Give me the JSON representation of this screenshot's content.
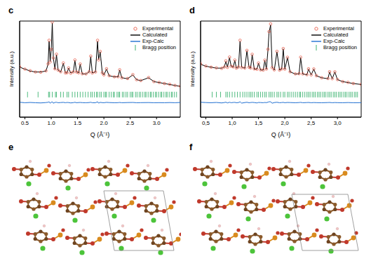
{
  "chart_data": [
    {
      "type": "line",
      "title": "c",
      "x_label": "Q (Å⁻¹)",
      "y_label": "Intensity (a.u.)",
      "xlim": [
        0.4,
        3.45
      ],
      "ylim": [
        0,
        100
      ],
      "xticks": [
        0.5,
        {
          "value": 1,
          "label": "1.0"
        },
        1.5,
        {
          "value": 2,
          "label": "2.0"
        },
        2.5,
        {
          "value": 3,
          "label": "3.0"
        }
      ],
      "tick_labels": "x",
      "legend": "upper right",
      "x": [
        0.4,
        0.5,
        0.6,
        0.7,
        0.8,
        0.9,
        0.94,
        0.96,
        0.98,
        1.0,
        1.02,
        1.04,
        1.07,
        1.1,
        1.13,
        1.18,
        1.23,
        1.27,
        1.3,
        1.33,
        1.37,
        1.42,
        1.45,
        1.48,
        1.52,
        1.55,
        1.59,
        1.66,
        1.72,
        1.75,
        1.78,
        1.84,
        1.88,
        1.9,
        1.93,
        1.97,
        2.0,
        2.05,
        2.1,
        2.2,
        2.27,
        2.3,
        2.34,
        2.45,
        2.55,
        2.62,
        2.7,
        2.85,
        2.95,
        3.05,
        3.15,
        3.25,
        3.35,
        3.45
      ],
      "series": [
        {
          "name": "Experimental",
          "type": "scatter",
          "marker": "o",
          "color": "#e8614f",
          "values": [
            52.5,
            50,
            48.3,
            47,
            46.8,
            48.2,
            55.5,
            80,
            57.5,
            70.5,
            99,
            61.5,
            50.3,
            65.5,
            49,
            47.2,
            56.4,
            46,
            46.3,
            51.2,
            45.8,
            47.1,
            59.5,
            47,
            46.2,
            55.3,
            45.1,
            45,
            47.2,
            63.5,
            46,
            47,
            80,
            59.6,
            68.4,
            46.1,
            44,
            50.4,
            43.2,
            42,
            42.1,
            49.3,
            41,
            40.2,
            44.3,
            39,
            38.1,
            41.2,
            37,
            36.1,
            35,
            34.2,
            33,
            32.3
          ]
        },
        {
          "name": "Calculated",
          "type": "line",
          "line_style": "solid",
          "color": "#000000",
          "values": [
            52,
            50,
            48,
            47,
            47,
            48,
            55,
            79,
            58,
            70,
            98,
            62,
            50,
            65,
            49,
            47,
            56,
            46,
            46,
            51,
            46,
            47,
            59,
            47,
            46,
            55,
            45,
            45,
            47,
            63,
            46,
            47,
            79,
            60,
            68,
            46,
            44,
            50,
            43,
            42,
            42,
            49,
            41,
            40,
            44,
            39,
            38,
            41,
            37,
            36,
            35,
            34,
            33,
            32
          ]
        },
        {
          "name": "Exp-Calc",
          "type": "line",
          "line_style": "solid",
          "color": "#1f6fd1",
          "values": [
            15.5,
            15,
            15.3,
            15,
            14.8,
            15.2,
            15.5,
            16,
            14.5,
            15.5,
            16,
            14.5,
            15.3,
            15.5,
            15,
            15.2,
            15.4,
            15,
            15.3,
            15.2,
            14.8,
            15.1,
            15.5,
            15,
            15.2,
            15.3,
            15.1,
            15,
            15.2,
            15.5,
            15,
            15,
            16,
            14.6,
            15.4,
            15.1,
            15,
            15.4,
            15.2,
            15,
            15.1,
            15.3,
            15,
            15.2,
            15.3,
            15,
            15.1,
            15.2,
            15,
            15.1,
            15,
            15.2,
            15,
            15.3
          ]
        },
        {
          "name": "Bragg position",
          "type": "scatter",
          "marker": "|",
          "color": "#3cb371",
          "level": 23.5,
          "x": [
            0.55,
            0.75,
            0.95,
            0.97,
            1.02,
            1.08,
            1.1,
            1.18,
            1.23,
            1.3,
            1.33,
            1.4,
            1.45,
            1.5,
            1.55,
            1.6,
            1.65,
            1.7,
            1.75,
            1.78,
            1.82,
            1.86,
            1.88,
            1.92,
            1.95,
            2.0,
            2.03,
            2.05,
            2.1,
            2.14,
            2.18,
            2.2,
            2.25,
            2.28,
            2.3,
            2.35,
            2.38,
            2.42,
            2.45,
            2.5,
            2.53,
            2.55,
            2.6,
            2.63,
            2.67,
            2.7,
            2.74,
            2.78,
            2.8,
            2.84,
            2.88,
            2.9,
            2.94,
            2.98,
            3.0,
            3.04,
            3.08,
            3.1,
            3.14,
            3.18,
            3.2,
            3.24,
            3.28,
            3.3,
            3.34,
            3.38
          ]
        }
      ]
    },
    {
      "type": "line",
      "title": "d",
      "x_label": "Q (Å⁻¹)",
      "y_label": "Intensity (a.u.)",
      "xlim": [
        0.4,
        3.45
      ],
      "ylim": [
        0,
        100
      ],
      "xticks": [
        {
          "value": 0.5,
          "label": "0,5"
        },
        {
          "value": 1,
          "label": "1,0"
        },
        {
          "value": 1.5,
          "label": "1,5"
        },
        {
          "value": 2,
          "label": "2,0"
        },
        {
          "value": 2.5,
          "label": "2,5"
        },
        {
          "value": 3,
          "label": "3,0"
        }
      ],
      "tick_labels": "x",
      "legend": "upper right",
      "x": [
        0.4,
        0.5,
        0.6,
        0.7,
        0.8,
        0.85,
        0.88,
        0.91,
        0.95,
        0.98,
        1.02,
        1.05,
        1.08,
        1.12,
        1.15,
        1.18,
        1.24,
        1.28,
        1.32,
        1.35,
        1.38,
        1.42,
        1.47,
        1.5,
        1.54,
        1.59,
        1.62,
        1.65,
        1.68,
        1.7,
        1.73,
        1.76,
        1.8,
        1.85,
        1.9,
        1.94,
        1.97,
        2.0,
        2.05,
        2.1,
        2.2,
        2.27,
        2.3,
        2.34,
        2.42,
        2.45,
        2.5,
        2.55,
        2.6,
        2.7,
        2.82,
        2.85,
        2.9,
        2.95,
        3.0,
        3.1,
        3.2,
        3.3,
        3.45
      ],
      "series": [
        {
          "name": "Experimental",
          "type": "scatter",
          "marker": "o",
          "color": "#e8614f",
          "values": [
            55.5,
            53.2,
            52,
            51.3,
            50.8,
            52.2,
            58.6,
            51.8,
            62.5,
            53,
            52.3,
            59.4,
            51,
            52.2,
            80,
            51.6,
            51.2,
            69.5,
            52,
            51.2,
            65.4,
            50.2,
            49.8,
            56.3,
            49.2,
            49,
            59.3,
            50.1,
            70.6,
            89,
            97,
            51.5,
            49.2,
            68.5,
            49,
            50.2,
            71.4,
            50,
            62.3,
            47.2,
            45,
            45.2,
            62.4,
            45,
            44.2,
            50.3,
            44,
            50.2,
            43.1,
            41,
            40.2,
            47.3,
            40,
            47.2,
            39.1,
            37,
            36.2,
            35,
            34.1
          ]
        },
        {
          "name": "Calculated",
          "type": "line",
          "line_style": "solid",
          "color": "#000000",
          "values": [
            55,
            53,
            52,
            51,
            51,
            52,
            58,
            52,
            62,
            53,
            52,
            59,
            51,
            52,
            79,
            52,
            51,
            69,
            52,
            51,
            65,
            50,
            50,
            56,
            49,
            49,
            59,
            50,
            70,
            88,
            96,
            52,
            49,
            68,
            49,
            50,
            71,
            50,
            62,
            47,
            45,
            45,
            62,
            45,
            44,
            50,
            44,
            50,
            43,
            41,
            40,
            47,
            40,
            47,
            39,
            37,
            36,
            35,
            34
          ]
        },
        {
          "name": "Exp-Calc",
          "type": "line",
          "line_style": "solid",
          "color": "#1f6fd1",
          "values": [
            15.5,
            15.2,
            15,
            15.3,
            14.8,
            15.2,
            15.6,
            14.8,
            15.5,
            15,
            15.3,
            15.4,
            15,
            15.2,
            16,
            14.6,
            15.2,
            15.5,
            15,
            15.2,
            15.4,
            15.2,
            14.8,
            15.3,
            15.2,
            15,
            15.3,
            15.1,
            15.6,
            16,
            16,
            14.5,
            15.2,
            15.5,
            15,
            15.2,
            15.4,
            15,
            15.3,
            15.2,
            15,
            15.2,
            15.4,
            15,
            15.2,
            15.3,
            15,
            15.2,
            15.1,
            15,
            15.2,
            15.3,
            15,
            15.2,
            15.1,
            15,
            15.2,
            15,
            15.1
          ]
        },
        {
          "name": "Bragg position",
          "type": "scatter",
          "marker": "|",
          "color": "#3cb371",
          "level": 23.5,
          "x": [
            0.62,
            0.7,
            0.78,
            0.88,
            0.91,
            0.95,
            1.0,
            1.05,
            1.1,
            1.15,
            1.2,
            1.24,
            1.28,
            1.32,
            1.35,
            1.38,
            1.42,
            1.47,
            1.5,
            1.54,
            1.58,
            1.62,
            1.65,
            1.7,
            1.73,
            1.76,
            1.8,
            1.85,
            1.88,
            1.92,
            1.97,
            2.0,
            2.05,
            2.08,
            2.12,
            2.16,
            2.2,
            2.24,
            2.28,
            2.3,
            2.34,
            2.38,
            2.42,
            2.45,
            2.48,
            2.52,
            2.55,
            2.58,
            2.62,
            2.65,
            2.68,
            2.72,
            2.75,
            2.78,
            2.82,
            2.85,
            2.88,
            2.92,
            2.95,
            2.98,
            3.02,
            3.05,
            3.08,
            3.12,
            3.15,
            3.18,
            3.22,
            3.25,
            3.28,
            3.32,
            3.35,
            3.38
          ]
        }
      ]
    }
  ],
  "structures": [
    {
      "label": "e"
    },
    {
      "label": "f"
    }
  ]
}
